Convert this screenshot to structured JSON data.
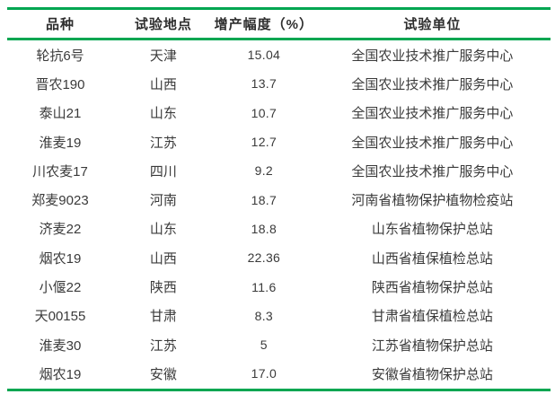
{
  "accent_color": "#00A651",
  "table": {
    "headers": [
      "品种",
      "试验地点",
      "增产幅度（%）",
      "试验单位"
    ],
    "rows": [
      [
        "轮抗6号",
        "天津",
        "15.04",
        "全国农业技术推广服务中心"
      ],
      [
        "晋农190",
        "山西",
        "13.7",
        "全国农业技术推广服务中心"
      ],
      [
        "泰山21",
        "山东",
        "10.7",
        "全国农业技术推广服务中心"
      ],
      [
        "淮麦19",
        "江苏",
        "12.7",
        "全国农业技术推广服务中心"
      ],
      [
        "川农麦17",
        "四川",
        "9.2",
        "全国农业技术推广服务中心"
      ],
      [
        "郑麦9023",
        "河南",
        "18.7",
        "河南省植物保护植物检疫站"
      ],
      [
        "济麦22",
        "山东",
        "18.8",
        "山东省植物保护总站"
      ],
      [
        "烟农19",
        "山西",
        "22.36",
        "山西省植保植检总站"
      ],
      [
        "小偃22",
        "陕西",
        "11.6",
        "陕西省植物保护总站"
      ],
      [
        "天00155",
        "甘肃",
        "8.3",
        "甘肃省植保植检总站"
      ],
      [
        "淮麦30",
        "江苏",
        "5",
        "江苏省植物保护总站"
      ],
      [
        "烟农19",
        "安徽",
        "17.0",
        "安徽省植物保护总站"
      ]
    ]
  }
}
